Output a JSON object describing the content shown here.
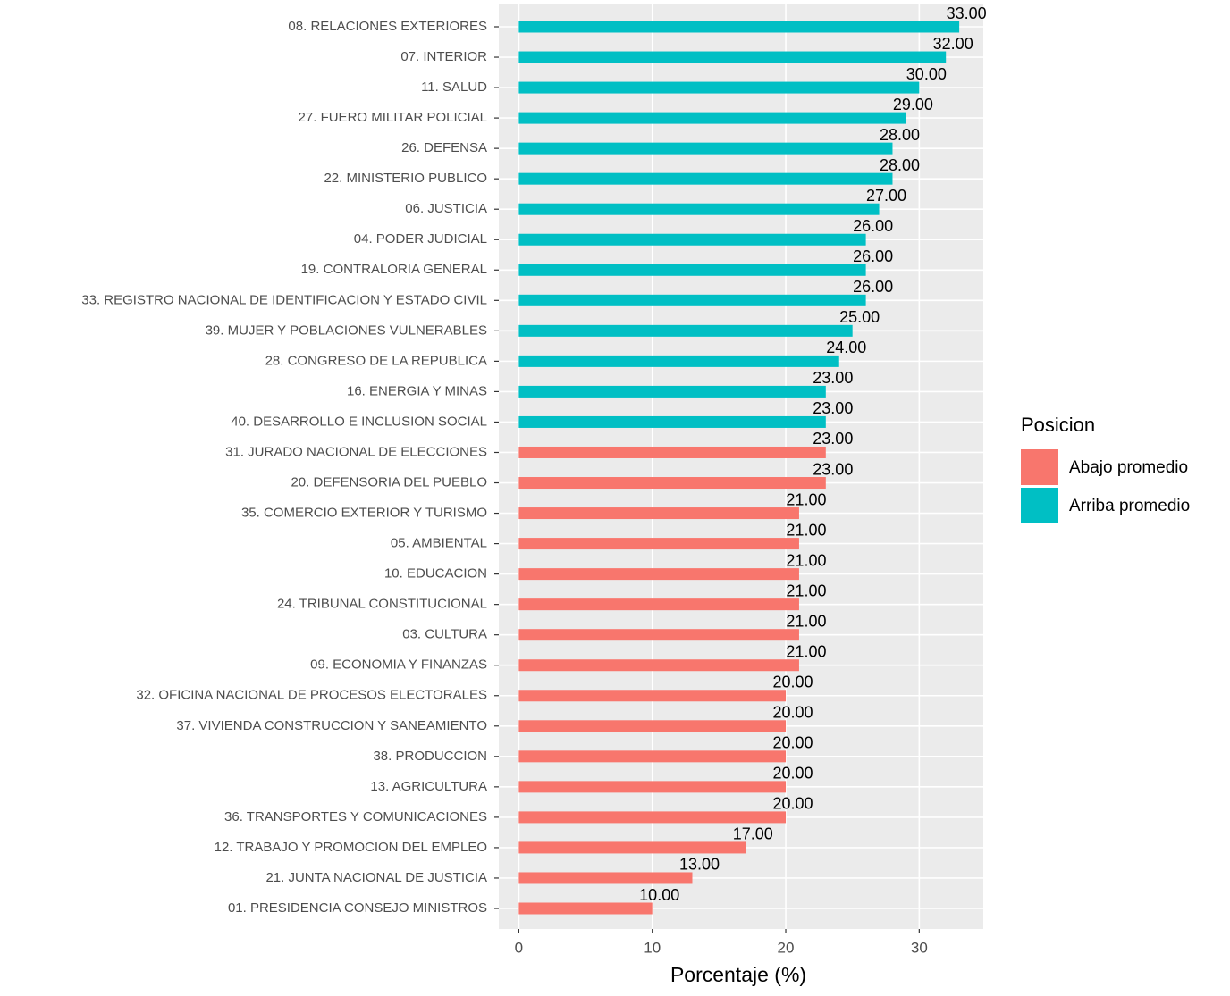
{
  "chart_data": {
    "type": "bar",
    "orientation": "horizontal",
    "x_label": "Porcentaje (%)",
    "legend_title": "Posicion",
    "legend_position": "right",
    "categories": [
      "08. RELACIONES EXTERIORES",
      "07. INTERIOR",
      "11. SALUD",
      "27. FUERO MILITAR POLICIAL",
      "26. DEFENSA",
      "22. MINISTERIO PUBLICO",
      "06. JUSTICIA",
      "04. PODER JUDICIAL",
      "19. CONTRALORIA GENERAL",
      "33. REGISTRO NACIONAL DE IDENTIFICACION Y ESTADO CIVIL",
      "39. MUJER Y POBLACIONES VULNERABLES",
      "28. CONGRESO DE LA REPUBLICA",
      "16. ENERGIA Y MINAS",
      "40. DESARROLLO E INCLUSION SOCIAL",
      "31. JURADO NACIONAL DE ELECCIONES",
      "20. DEFENSORIA DEL PUEBLO",
      "35. COMERCIO EXTERIOR Y TURISMO",
      "05. AMBIENTAL",
      "10. EDUCACION",
      "24. TRIBUNAL CONSTITUCIONAL",
      "03. CULTURA",
      "09. ECONOMIA Y FINANZAS",
      "32. OFICINA NACIONAL DE PROCESOS ELECTORALES",
      "37. VIVIENDA CONSTRUCCION Y SANEAMIENTO",
      "38. PRODUCCION",
      "13. AGRICULTURA",
      "36. TRANSPORTES Y COMUNICACIONES",
      "12. TRABAJO Y PROMOCION DEL EMPLEO",
      "21. JUNTA NACIONAL DE JUSTICIA",
      "01. PRESIDENCIA CONSEJO MINISTROS"
    ],
    "series": [
      {
        "name": "Abajo promedio",
        "color": "#F8766D",
        "values": [
          null,
          null,
          null,
          null,
          null,
          null,
          null,
          null,
          null,
          null,
          null,
          null,
          null,
          null,
          23,
          23,
          21,
          21,
          21,
          21,
          21,
          21,
          20,
          20,
          20,
          20,
          20,
          17,
          13,
          10
        ],
        "value_labels": [
          null,
          null,
          null,
          null,
          null,
          null,
          null,
          null,
          null,
          null,
          null,
          null,
          null,
          null,
          "23.00",
          "23.00",
          "21.00",
          "21.00",
          "21.00",
          "21.00",
          "21.00",
          "21.00",
          "20.00",
          "20.00",
          "20.00",
          "20.00",
          "20.00",
          "17.00",
          "13.00",
          "10.00"
        ]
      },
      {
        "name": "Arriba promedio",
        "color": "#00BFC4",
        "values": [
          33,
          32,
          30,
          29,
          28,
          28,
          27,
          26,
          26,
          26,
          25,
          24,
          23,
          23,
          null,
          null,
          null,
          null,
          null,
          null,
          null,
          null,
          null,
          null,
          null,
          null,
          null,
          null,
          null,
          null
        ],
        "value_labels": [
          "33.00",
          "32.00",
          "30.00",
          "29.00",
          "28.00",
          "28.00",
          "27.00",
          "26.00",
          "26.00",
          "26.00",
          "25.00",
          "24.00",
          "23.00",
          "23.00",
          null,
          null,
          null,
          null,
          null,
          null,
          null,
          null,
          null,
          null,
          null,
          null,
          null,
          null,
          null,
          null
        ]
      }
    ],
    "xlim": [
      -1.5,
      34.8
    ],
    "xticks": [
      0,
      10,
      20,
      30
    ],
    "grid": true
  }
}
